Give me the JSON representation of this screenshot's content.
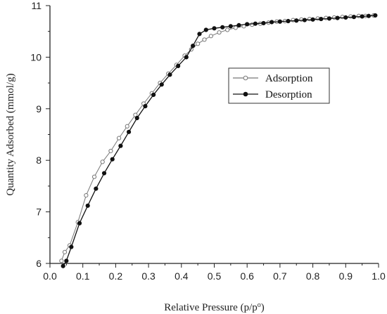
{
  "chart_data": {
    "type": "line",
    "xlabel": "Relative Pressure (p/p",
    "xlabel_sup": "o",
    "xlabel_end": ")",
    "ylabel": "Quantity Adsorbed (mmol/g)",
    "xlim": [
      0.0,
      1.0
    ],
    "ylim": [
      6,
      11
    ],
    "xticks": [
      "0.0",
      "0.1",
      "0.2",
      "0.3",
      "0.4",
      "0.5",
      "0.6",
      "0.7",
      "0.8",
      "0.9",
      "1.0"
    ],
    "yticks": [
      "6",
      "7",
      "8",
      "9",
      "10",
      "11"
    ],
    "grid": false,
    "legend_position": "center-right",
    "series": [
      {
        "name": "Adsorption",
        "marker": "open-circle",
        "line_color": "#777777",
        "x": [
          0.035,
          0.045,
          0.06,
          0.085,
          0.11,
          0.135,
          0.16,
          0.185,
          0.21,
          0.235,
          0.26,
          0.285,
          0.31,
          0.335,
          0.36,
          0.385,
          0.41,
          0.43,
          0.45,
          0.47,
          0.49,
          0.515,
          0.54,
          0.565,
          0.59,
          0.615,
          0.64,
          0.665,
          0.69,
          0.715,
          0.74,
          0.765,
          0.79,
          0.815,
          0.84,
          0.865,
          0.89,
          0.915,
          0.94,
          0.96,
          0.985
        ],
        "y": [
          6.05,
          6.22,
          6.35,
          6.8,
          7.32,
          7.68,
          7.97,
          8.18,
          8.43,
          8.66,
          8.88,
          9.1,
          9.3,
          9.5,
          9.68,
          9.85,
          10.03,
          10.15,
          10.26,
          10.34,
          10.41,
          10.48,
          10.53,
          10.57,
          10.6,
          10.63,
          10.65,
          10.67,
          10.69,
          10.7,
          10.72,
          10.73,
          10.74,
          10.75,
          10.76,
          10.77,
          10.78,
          10.79,
          10.8,
          10.8,
          10.81
        ]
      },
      {
        "name": "Desorption",
        "marker": "filled-circle",
        "line_color": "#111111",
        "x": [
          0.04,
          0.05,
          0.065,
          0.09,
          0.115,
          0.14,
          0.165,
          0.19,
          0.215,
          0.24,
          0.265,
          0.29,
          0.315,
          0.34,
          0.365,
          0.39,
          0.415,
          0.435,
          0.455,
          0.475,
          0.5,
          0.525,
          0.55,
          0.575,
          0.6,
          0.625,
          0.65,
          0.675,
          0.7,
          0.725,
          0.75,
          0.775,
          0.8,
          0.825,
          0.85,
          0.875,
          0.9,
          0.925,
          0.95,
          0.97,
          0.99
        ],
        "y": [
          5.95,
          6.05,
          6.32,
          6.78,
          7.12,
          7.45,
          7.75,
          8.02,
          8.28,
          8.55,
          8.82,
          9.05,
          9.27,
          9.47,
          9.66,
          9.83,
          10.0,
          10.22,
          10.45,
          10.53,
          10.56,
          10.58,
          10.6,
          10.62,
          10.64,
          10.65,
          10.66,
          10.68,
          10.69,
          10.7,
          10.71,
          10.72,
          10.73,
          10.74,
          10.75,
          10.76,
          10.77,
          10.78,
          10.79,
          10.8,
          10.81
        ]
      }
    ]
  }
}
